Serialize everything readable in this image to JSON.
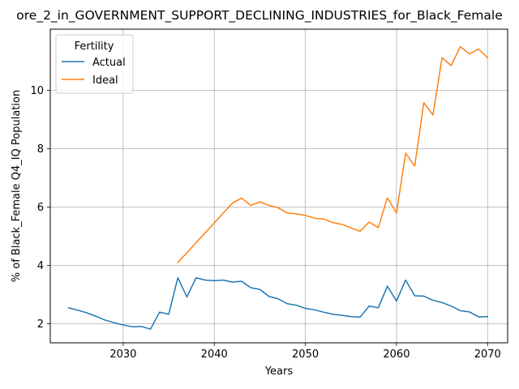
{
  "chart_data": {
    "type": "line",
    "title": "ore_2_in_GOVERNMENT_SUPPORT_DECLINING_INDUSTRIES_for_Black_Female",
    "xlabel": "Years",
    "ylabel": "% of Black_Female Q4_IQ Population",
    "xlim": [
      2022,
      2072.2
    ],
    "ylim": [
      1.35,
      12.1
    ],
    "xticks": [
      2030,
      2040,
      2050,
      2060,
      2070
    ],
    "yticks": [
      2,
      4,
      6,
      8,
      10
    ],
    "grid": true,
    "legend": {
      "title": "Fertility",
      "placement": "upper-left"
    },
    "series": [
      {
        "name": "Actual",
        "color": "#1f77b4",
        "x": [
          2024,
          2025,
          2026,
          2027,
          2028,
          2029,
          2030,
          2031,
          2032,
          2033,
          2034,
          2035,
          2036,
          2037,
          2038,
          2039,
          2040,
          2041,
          2042,
          2043,
          2044,
          2045,
          2046,
          2047,
          2048,
          2049,
          2050,
          2051,
          2052,
          2053,
          2054,
          2055,
          2056,
          2057,
          2058,
          2059,
          2060,
          2061,
          2062,
          2063,
          2064,
          2065,
          2066,
          2067,
          2068,
          2069,
          2070
        ],
        "values": [
          2.55,
          2.47,
          2.38,
          2.26,
          2.13,
          2.04,
          1.96,
          1.9,
          1.91,
          1.82,
          2.4,
          2.33,
          3.58,
          2.92,
          3.58,
          3.5,
          3.48,
          3.5,
          3.43,
          3.46,
          3.24,
          3.18,
          2.94,
          2.86,
          2.69,
          2.64,
          2.53,
          2.48,
          2.4,
          2.33,
          2.29,
          2.25,
          2.23,
          2.61,
          2.55,
          3.29,
          2.78,
          3.5,
          2.96,
          2.95,
          2.81,
          2.73,
          2.61,
          2.45,
          2.41,
          2.24,
          2.25
        ]
      },
      {
        "name": "Ideal",
        "color": "#ff7f0e",
        "x": [
          2036,
          2037,
          2038,
          2039,
          2040,
          2041,
          2042,
          2043,
          2044,
          2045,
          2046,
          2047,
          2048,
          2049,
          2050,
          2051,
          2052,
          2053,
          2054,
          2055,
          2056,
          2057,
          2058,
          2059,
          2060,
          2061,
          2062,
          2063,
          2064,
          2065,
          2066,
          2067,
          2068,
          2069,
          2070
        ],
        "values": [
          4.1,
          4.44,
          4.78,
          5.12,
          5.46,
          5.8,
          6.14,
          6.31,
          6.06,
          6.18,
          6.06,
          5.98,
          5.8,
          5.77,
          5.72,
          5.62,
          5.59,
          5.47,
          5.41,
          5.29,
          5.17,
          5.49,
          5.3,
          6.32,
          5.8,
          7.85,
          7.41,
          9.58,
          9.16,
          11.12,
          10.85,
          11.5,
          11.25,
          11.42,
          11.12
        ]
      }
    ]
  }
}
